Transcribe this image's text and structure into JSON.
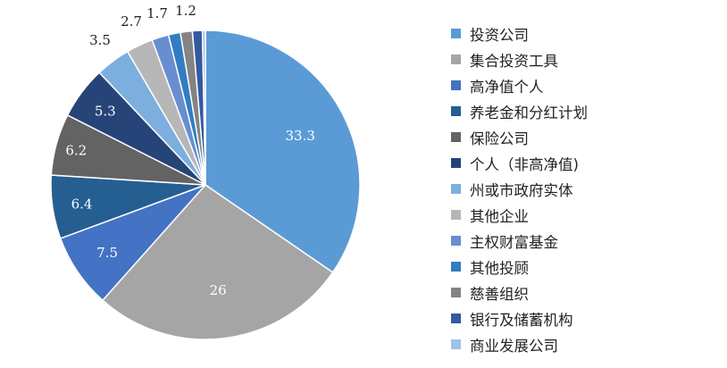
{
  "chart_data": {
    "type": "pie",
    "title": "",
    "start_angle_deg": 0,
    "direction": "clockwise",
    "legend_position": "right",
    "slices": [
      {
        "label": "投资公司",
        "value": 33.3,
        "color": "#5b9bd5",
        "value_label": "33.3",
        "label_color": "#ffffff"
      },
      {
        "label": "集合投资工具",
        "value": 26,
        "color": "#a5a5a5",
        "value_label": "26",
        "label_color": "#ffffff"
      },
      {
        "label": "高净值个人",
        "value": 7.5,
        "color": "#4472c4",
        "value_label": "7.5",
        "label_color": "#ffffff"
      },
      {
        "label": "养老金和分红计划",
        "value": 6.4,
        "color": "#255e91",
        "value_label": "6.4",
        "label_color": "#ffffff"
      },
      {
        "label": "保险公司",
        "value": 6.2,
        "color": "#636363",
        "value_label": "6.2",
        "label_color": "#ffffff"
      },
      {
        "label": "个人（非高净值)",
        "value": 5.3,
        "color": "#264478",
        "value_label": "5.3",
        "label_color": "#ffffff"
      },
      {
        "label": "州或市政府实体",
        "value": 3.5,
        "color": "#7cafdd",
        "value_label": "3.5",
        "label_color": "#222222"
      },
      {
        "label": "其他企业",
        "value": 2.7,
        "color": "#b7b7b7",
        "value_label": "2.7",
        "label_color": "#222222"
      },
      {
        "label": "主权财富基金",
        "value": 1.7,
        "color": "#698ed0",
        "value_label": "1.7",
        "label_color": "#222222"
      },
      {
        "label": "其他投顾",
        "value": 1.2,
        "color": "#327dc2",
        "value_label": "",
        "label_color": "#222222"
      },
      {
        "label": "慈善组织",
        "value": 1.2,
        "color": "#848484",
        "value_label": "1.2",
        "label_color": "#222222"
      },
      {
        "label": "银行及储蓄机构",
        "value": 1.0,
        "color": "#335aa1",
        "value_label": "",
        "label_color": "#222222"
      },
      {
        "label": "商业发展公司",
        "value": 0.3,
        "color": "#9dc3e6",
        "value_label": "",
        "label_color": "#222222"
      }
    ]
  }
}
